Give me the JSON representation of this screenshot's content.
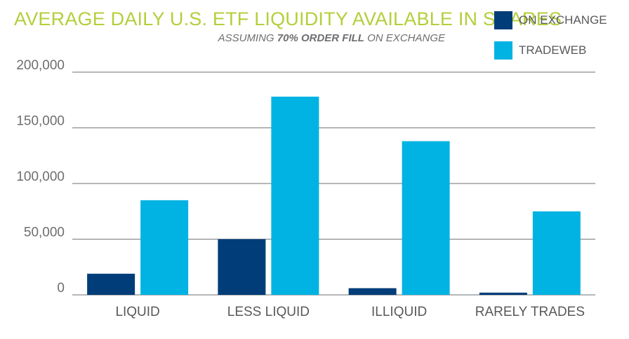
{
  "chart_data": {
    "type": "bar",
    "title": "AVERAGE DAILY U.S. ETF LIQUIDITY AVAILABLE IN SHARES",
    "subtitle_pre": "ASSUMING ",
    "subtitle_bold": "70% ORDER FILL",
    "subtitle_post": " ON EXCHANGE",
    "categories": [
      "LIQUID",
      "LESS LIQUID",
      "ILLIQUID",
      "RARELY TRADES"
    ],
    "series": [
      {
        "name": "ON EXCHANGE",
        "color": "#003d79",
        "values": [
          19000,
          50000,
          6000,
          2000
        ]
      },
      {
        "name": "TRADEWEB",
        "color": "#00b3e3",
        "values": [
          85000,
          178000,
          138000,
          75000
        ]
      }
    ],
    "yticks": [
      0,
      50000,
      100000,
      150000,
      200000
    ],
    "ytick_labels": [
      "0",
      "50,000",
      "100,000",
      "150,000",
      "200,000"
    ],
    "ylim": [
      0,
      200000
    ],
    "grid": true,
    "legend_position": "top-right",
    "gridline_color": "#8a8c8f"
  }
}
